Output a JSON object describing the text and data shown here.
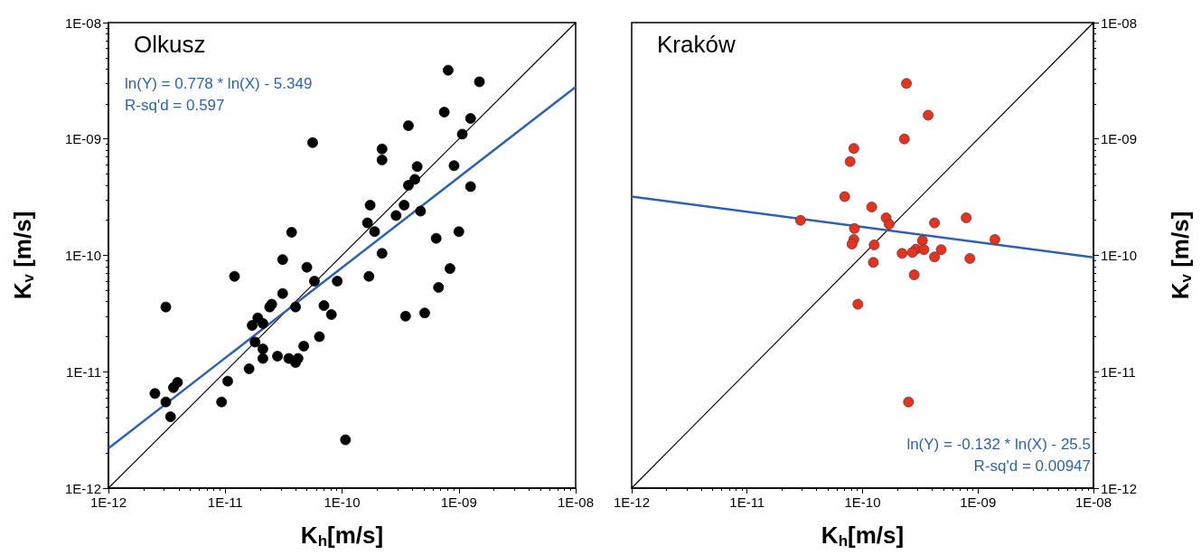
{
  "chart_data": [
    {
      "type": "scatter",
      "title": "Olkusz",
      "xlabel": "K$_{h}$[m/s]",
      "ylabel": "K$_{v}$ [m/s]",
      "log": "xy",
      "xlim": [
        1e-12,
        1e-08
      ],
      "ylim": [
        1e-12,
        1e-08
      ],
      "xticks": [
        {
          "value": 1e-12,
          "label": "1E-12"
        },
        {
          "value": 1e-11,
          "label": "1E-11"
        },
        {
          "value": 1e-10,
          "label": "1E-10"
        },
        {
          "value": 1e-09,
          "label": "1E-09"
        },
        {
          "value": 1e-08,
          "label": "1E-08"
        }
      ],
      "yticks": [
        {
          "value": 1e-12,
          "label": "1E-12"
        },
        {
          "value": 1e-11,
          "label": "1E-11"
        },
        {
          "value": 1e-10,
          "label": "1E-10"
        },
        {
          "value": 1e-09,
          "label": "1E-09"
        },
        {
          "value": 1e-08,
          "label": "1E-08"
        }
      ],
      "annotations": [
        "ln(Y) = 0.778 * ln(X) - 5.349",
        "R-sq'd = 0.597"
      ],
      "series": [
        {
          "type": "line",
          "marker": "none",
          "color": "#000000",
          "x": [
            1e-12,
            1e-08
          ],
          "values": [
            1e-12,
            1e-08
          ]
        },
        {
          "marker": "circle",
          "color": "#000000",
          "x": [
            2.5e-12,
            3.1e-12,
            3.4e-12,
            3.6e-12,
            3.9e-12,
            3.1e-12,
            9.3e-12,
            1.05e-11,
            1.2e-11,
            1.6e-11,
            1.7e-11,
            1.8e-11,
            1.9e-11,
            2.1e-11,
            2.1e-11,
            2.1e-11,
            2.4e-11,
            2.5e-11,
            2.8e-11,
            3.1e-11,
            3.1e-11,
            3.5e-11,
            3.7e-11,
            4e-11,
            4e-11,
            4.2e-11,
            4.7e-11,
            5e-11,
            5.6e-11,
            5.8e-11,
            6.4e-11,
            7e-11,
            8.1e-11,
            9.1e-11,
            1.07e-10,
            1.7e-10,
            1.74e-10,
            1.65e-10,
            1.9e-10,
            2.2e-10,
            2.2e-10,
            2.2e-10,
            2.9e-10,
            3.4e-10,
            3.5e-10,
            3.7e-10,
            3.7e-10,
            4.2e-10,
            4.4e-10,
            4.7e-10,
            5.1e-10,
            6.4e-10,
            6.7e-10,
            7.5e-10,
            8.1e-10,
            8.4e-10,
            9.1e-10,
            1e-09,
            1.07e-09,
            1.26e-09,
            1.26e-09,
            1.5e-09
          ],
          "values": [
            6.5e-12,
            5.5e-12,
            4.1e-12,
            7.3e-12,
            8.1e-12,
            3.6e-11,
            5.5e-12,
            8.3e-12,
            6.6e-11,
            1.06e-11,
            2.5e-11,
            1.8e-11,
            2.9e-11,
            2.6e-11,
            1.57e-11,
            1.3e-11,
            3.6e-11,
            3.8e-11,
            1.36e-11,
            4.7e-11,
            9.2e-11,
            1.3e-11,
            1.58e-10,
            3.6e-11,
            1.2e-11,
            1.3e-11,
            1.66e-11,
            7.9e-11,
            9.3e-10,
            6e-11,
            2e-11,
            3.7e-11,
            3.1e-11,
            6e-11,
            2.6e-12,
            6.6e-11,
            2.7e-10,
            1.9e-10,
            1.6e-10,
            6.6e-10,
            8.2e-10,
            1.04e-10,
            2.2e-10,
            2.7e-10,
            3e-11,
            1.3e-09,
            4e-10,
            4.5e-10,
            5.8e-10,
            2.4e-10,
            3.2e-11,
            1.4e-10,
            5.3e-11,
            1.7e-09,
            3.9e-09,
            7.7e-11,
            5.9e-10,
            1.6e-10,
            1.1e-09,
            1.5e-09,
            3.9e-10,
            3.1e-09
          ]
        },
        {
          "type": "line",
          "marker": "none",
          "color": "#2e62b0",
          "x": [
            1e-12,
            1e-08
          ],
          "values": [
            2.2e-12,
            2.8e-09
          ]
        }
      ]
    },
    {
      "type": "scatter",
      "title": "Kraków",
      "xlabel": "K$_{h}$[m/s]",
      "ylabel": "K$_{v}$ [m/s]",
      "log": "xy",
      "xlim": [
        1e-12,
        1e-08
      ],
      "ylim": [
        1e-12,
        1e-08
      ],
      "xticks": [
        {
          "value": 1e-12,
          "label": "1E-12"
        },
        {
          "value": 1e-11,
          "label": "1E-11"
        },
        {
          "value": 1e-10,
          "label": "1E-10"
        },
        {
          "value": 1e-09,
          "label": "1E-09"
        },
        {
          "value": 1e-08,
          "label": "1E-08"
        }
      ],
      "yticks": [
        {
          "value": 1e-12,
          "label": "1E-12"
        },
        {
          "value": 1e-11,
          "label": "1E-11"
        },
        {
          "value": 1e-10,
          "label": "1E-10"
        },
        {
          "value": 1e-09,
          "label": "1E-09"
        },
        {
          "value": 1e-08,
          "label": "1E-08"
        }
      ],
      "annotations": [
        "ln(Y) = -0.132 * ln(X) - 25.5",
        "R-sq'd = 0.00947"
      ],
      "series": [
        {
          "type": "line",
          "marker": "none",
          "color": "#000000",
          "x": [
            1e-12,
            1e-08
          ],
          "values": [
            1e-12,
            1e-08
          ]
        },
        {
          "marker": "circle",
          "color": "#e8321e",
          "x": [
            2.4e-10,
            3.7e-10,
            2.3e-10,
            8.4e-11,
            7.8e-11,
            7e-11,
            1.2e-10,
            2.9e-11,
            1.6e-10,
            1.7e-10,
            8.5e-11,
            4.2e-10,
            7.9e-10,
            8.4e-11,
            8.1e-11,
            1.26e-10,
            3.3e-10,
            1.4e-09,
            2.9e-10,
            3.4e-10,
            4.8e-10,
            2.2e-10,
            2.7e-10,
            1.24e-10,
            4.2e-10,
            8.5e-10,
            2.8e-10,
            9.1e-11,
            2.5e-10
          ],
          "values": [
            3e-09,
            1.6e-09,
            1e-09,
            8.3e-10,
            6.4e-10,
            3.2e-10,
            2.6e-10,
            2e-10,
            2.1e-10,
            1.85e-10,
            1.7e-10,
            1.9e-10,
            2.1e-10,
            1.37e-10,
            1.25e-10,
            1.23e-10,
            1.34e-10,
            1.37e-10,
            1.13e-10,
            1.12e-10,
            1.12e-10,
            1.04e-10,
            1.06e-10,
            8.7e-11,
            9.7e-11,
            9.4e-11,
            6.8e-11,
            3.8e-11,
            5.5e-12
          ]
        },
        {
          "type": "line",
          "marker": "none",
          "color": "#2e62b0",
          "x": [
            1e-12,
            1e-08
          ],
          "values": [
            3.2e-10,
            9.6e-11
          ]
        }
      ]
    }
  ]
}
